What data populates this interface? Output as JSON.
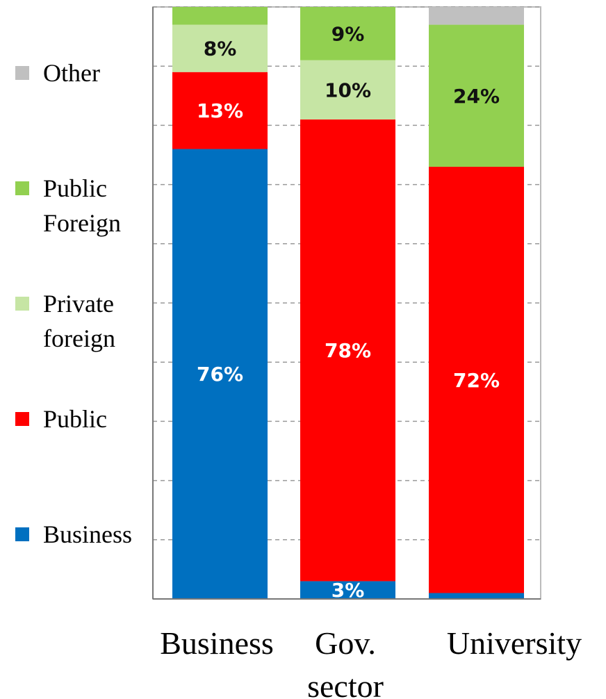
{
  "chart_data": {
    "type": "stacked_bar",
    "categories": [
      "Business",
      "Gov. sector",
      "University"
    ],
    "series": [
      {
        "name": "Business",
        "color": "#0070c0",
        "label_color": "#ffffff",
        "values": [
          76,
          3,
          1
        ],
        "value_labels": [
          "76%",
          "3%",
          null
        ]
      },
      {
        "name": "Public",
        "color": "#ff0000",
        "label_color": "#ffffff",
        "values": [
          13,
          78,
          72
        ],
        "value_labels": [
          "13%",
          "78%",
          "72%"
        ]
      },
      {
        "name": "Private foreign",
        "color": "#c6e5a4",
        "label_color": "#111111",
        "values": [
          8,
          10,
          0
        ],
        "value_labels": [
          "8%",
          "10%",
          null
        ]
      },
      {
        "name": "Public Foreign",
        "color": "#92d050",
        "label_color": "#111111",
        "values": [
          3,
          9,
          24
        ],
        "value_labels": [
          null,
          "9%",
          "24%"
        ]
      },
      {
        "name": "Other",
        "color": "#c0c0c0",
        "label_color": "#111111",
        "values": [
          0,
          0,
          3
        ],
        "value_labels": [
          null,
          null,
          null
        ]
      }
    ],
    "ylim": [
      0,
      100
    ],
    "yticks": [
      0,
      10,
      20,
      30,
      40,
      50,
      60,
      70,
      80,
      90,
      100
    ],
    "grid": true,
    "legend": "left"
  }
}
